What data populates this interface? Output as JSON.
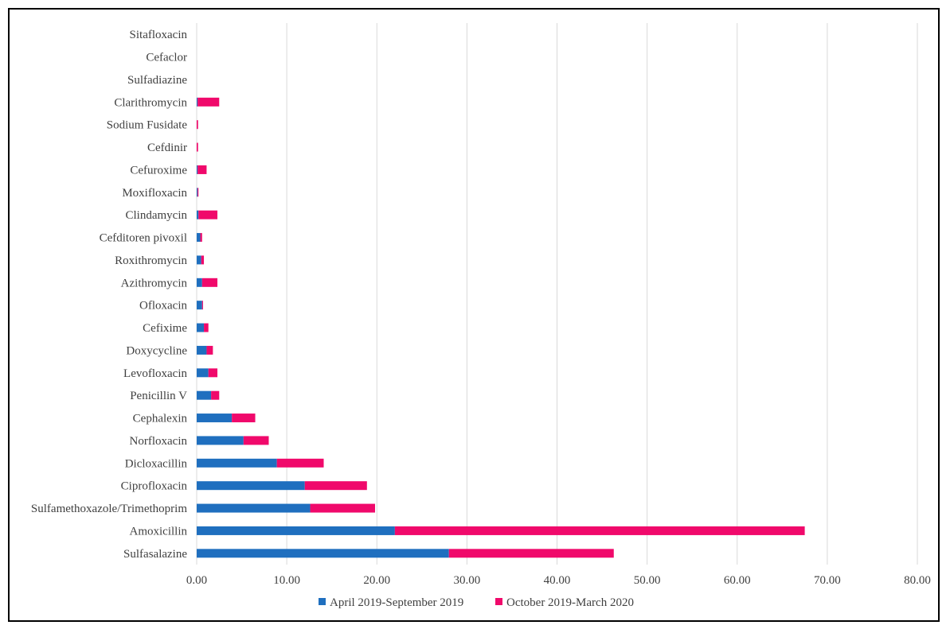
{
  "chart_data": {
    "type": "bar",
    "orientation": "horizontal",
    "stacked": true,
    "title": "",
    "xlabel": "",
    "ylabel": "",
    "xlim": [
      0,
      80
    ],
    "x_ticks": [
      "0.00",
      "10.00",
      "20.00",
      "30.00",
      "40.00",
      "50.00",
      "60.00",
      "70.00",
      "80.00"
    ],
    "grid": true,
    "legend_position": "bottom",
    "categories": [
      "Sulfasalazine",
      "Amoxicillin",
      "Sulfamethoxazole/Trimethoprim",
      "Ciprofloxacin",
      "Dicloxacillin",
      "Norfloxacin",
      "Cephalexin",
      "Penicillin V",
      "Levofloxacin",
      "Doxycycline",
      "Cefixime",
      "Ofloxacin",
      "Azithromycin",
      "Roxithromycin",
      "Cefditoren pivoxil",
      "Clindamycin",
      "Moxifloxacin",
      "Cefuroxime",
      "Cefdinir",
      "Sodium Fusidate",
      "Clarithromycin",
      "Sulfadiazine",
      "Cefaclor",
      "Sitafloxacin"
    ],
    "series": [
      {
        "name": "April 2019-September 2019",
        "color": "#1f6fbf",
        "values": [
          28.0,
          22.0,
          12.6,
          12.0,
          8.9,
          5.2,
          3.9,
          1.6,
          1.3,
          1.1,
          0.8,
          0.6,
          0.6,
          0.5,
          0.4,
          0.2,
          0.1,
          0.1,
          0.0,
          0.0,
          0.1,
          0.0,
          0.0,
          0.0
        ]
      },
      {
        "name": "October 2019-March 2020",
        "color": "#f0096b",
        "values": [
          18.3,
          45.5,
          7.2,
          6.9,
          5.2,
          2.8,
          2.6,
          0.9,
          1.0,
          0.7,
          0.5,
          0.1,
          1.7,
          0.3,
          0.2,
          2.1,
          0.1,
          1.0,
          0.15,
          0.15,
          2.4,
          0.0,
          0.0,
          0.0
        ]
      }
    ]
  }
}
